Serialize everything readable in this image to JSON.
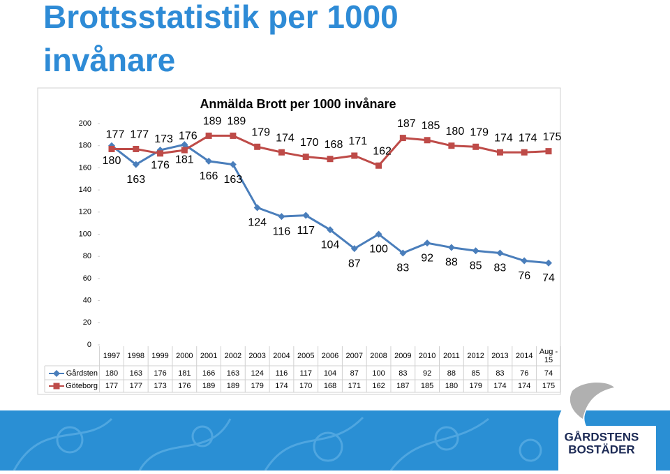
{
  "title": [
    "Brottsstatistik per 1000",
    "invånare"
  ],
  "logo": [
    "GÅRDSTENS",
    "BOSTÄDER"
  ],
  "chart_data": {
    "type": "line",
    "title": "Anmälda Brott per 1000 invånare",
    "categories": [
      "1997",
      "1998",
      "1999",
      "2000",
      "2001",
      "2002",
      "2003",
      "2004",
      "2005",
      "2006",
      "2007",
      "2008",
      "2009",
      "2010",
      "2011",
      "2012",
      "2013",
      "2014",
      "Aug - 15"
    ],
    "series": [
      {
        "name": "Gårdsten",
        "color": "#4a7ebb",
        "marker": "diamond",
        "values": [
          180,
          163,
          176,
          181,
          166,
          163,
          124,
          116,
          117,
          104,
          87,
          100,
          83,
          92,
          88,
          85,
          83,
          76,
          74
        ]
      },
      {
        "name": "Göteborg",
        "color": "#be4b48",
        "marker": "square",
        "values": [
          177,
          177,
          173,
          176,
          189,
          189,
          179,
          174,
          170,
          168,
          171,
          162,
          187,
          185,
          180,
          179,
          174,
          174,
          175
        ]
      }
    ],
    "ylim": [
      0,
      200
    ],
    "yticks": [
      0,
      20,
      40,
      60,
      80,
      100,
      120,
      140,
      160,
      180,
      200
    ],
    "data_table": true
  }
}
